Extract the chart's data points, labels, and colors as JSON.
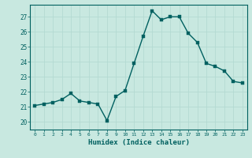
{
  "x": [
    0,
    1,
    2,
    3,
    4,
    5,
    6,
    7,
    8,
    9,
    10,
    11,
    12,
    13,
    14,
    15,
    16,
    17,
    18,
    19,
    20,
    21,
    22,
    23
  ],
  "y": [
    21.1,
    21.2,
    21.3,
    21.5,
    21.9,
    21.4,
    21.3,
    21.2,
    20.1,
    21.7,
    22.1,
    23.9,
    25.7,
    27.4,
    26.8,
    27.0,
    27.0,
    25.9,
    25.3,
    23.9,
    23.7,
    23.4,
    22.7,
    22.6
  ],
  "xlabel": "Humidex (Indice chaleur)",
  "ylim": [
    19.5,
    27.8
  ],
  "xlim": [
    -0.5,
    23.5
  ],
  "yticks": [
    20,
    21,
    22,
    23,
    24,
    25,
    26,
    27
  ],
  "xticks": [
    0,
    1,
    2,
    3,
    4,
    5,
    6,
    7,
    8,
    9,
    10,
    11,
    12,
    13,
    14,
    15,
    16,
    17,
    18,
    19,
    20,
    21,
    22,
    23
  ],
  "line_color": "#006060",
  "bg_color": "#c8e8e0",
  "grid_color": "#b0d8d0",
  "tick_label_color": "#006060",
  "xlabel_color": "#006060",
  "line_width": 1.0,
  "marker_size": 2.5
}
